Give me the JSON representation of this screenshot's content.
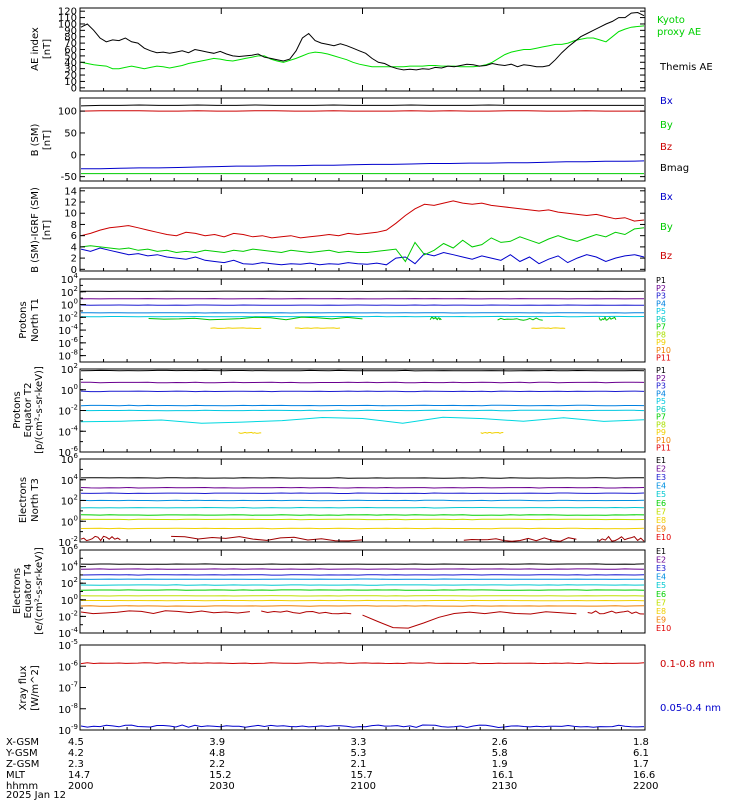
{
  "chart_data": [
    {
      "type": "line",
      "ylabel": "AE index [nT]",
      "ylim": [
        -5,
        125
      ],
      "yticks": [
        0,
        10,
        20,
        30,
        40,
        50,
        60,
        70,
        80,
        90,
        100,
        110,
        120
      ],
      "series": [
        {
          "name": "Kyoto proxy AE",
          "color": "#00e000",
          "values": [
            40,
            38,
            36,
            35,
            34,
            30,
            30,
            32,
            34,
            32,
            30,
            32,
            34,
            33,
            31,
            33,
            35,
            38,
            40,
            42,
            44,
            46,
            45,
            43,
            42,
            44,
            46,
            48,
            50,
            50,
            45,
            42,
            40,
            43,
            46,
            50,
            54,
            56,
            55,
            53,
            50,
            47,
            44,
            40,
            37,
            35,
            33,
            33,
            33,
            33,
            33,
            33,
            34,
            34,
            34,
            35,
            35,
            34,
            34,
            34,
            33,
            33,
            33,
            34,
            36,
            40,
            46,
            52,
            56,
            58,
            60,
            60,
            62,
            64,
            66,
            68,
            68,
            70,
            74,
            76,
            78,
            78,
            75,
            72,
            80,
            88,
            92,
            95,
            96,
            97
          ]
        },
        {
          "name": "Themis AE",
          "color": "#000000",
          "values": [
            95,
            100,
            90,
            78,
            72,
            75,
            74,
            78,
            72,
            70,
            62,
            58,
            55,
            56,
            54,
            56,
            58,
            55,
            60,
            58,
            56,
            54,
            57,
            53,
            50,
            49,
            50,
            51,
            53,
            48,
            46,
            44,
            42,
            45,
            58,
            78,
            85,
            74,
            70,
            68,
            66,
            69,
            66,
            62,
            58,
            54,
            46,
            40,
            38,
            33,
            30,
            28,
            29,
            28,
            30,
            29,
            32,
            31,
            34,
            33,
            35,
            37,
            36,
            34,
            35,
            38,
            36,
            35,
            37,
            33,
            36,
            35,
            33,
            33,
            35,
            44,
            55,
            64,
            72,
            80,
            85,
            90,
            95,
            100,
            104,
            110,
            110,
            117,
            118,
            113
          ]
        }
      ]
    },
    {
      "type": "line",
      "ylabel": "B (SM) [nT]",
      "ylim": [
        -60,
        130
      ],
      "yticks": [
        -50,
        0,
        50,
        100
      ],
      "series": [
        {
          "name": "Bx",
          "color": "#0000cc",
          "values": [
            -32,
            -32,
            -31,
            -30,
            -30,
            -29,
            -28,
            -27,
            -26,
            -26,
            -25,
            -25,
            -24,
            -24,
            -23,
            -22,
            -22,
            -21,
            -20,
            -20,
            -19,
            -19,
            -18,
            -18,
            -17,
            -16,
            -16,
            -15,
            -15,
            -14
          ]
        },
        {
          "name": "By",
          "color": "#00cc00",
          "values": [
            -43,
            -43,
            -43,
            -43,
            -43,
            -43,
            -43,
            -43,
            -43,
            -43,
            -43,
            -43,
            -43,
            -43,
            -43,
            -43,
            -43,
            -43,
            -43,
            -43,
            -43,
            -43,
            -43,
            -43,
            -43,
            -43,
            -43,
            -43,
            -43,
            -43
          ]
        },
        {
          "name": "Bz",
          "color": "#cc0000",
          "values": [
            100,
            101,
            101,
            101,
            100,
            100,
            101,
            100,
            100,
            101,
            101,
            100,
            100,
            101,
            100,
            100,
            100,
            101,
            100,
            101,
            100,
            100,
            101,
            101,
            100,
            100,
            101,
            100,
            100,
            100
          ]
        },
        {
          "name": "Bmag",
          "color": "#000000",
          "values": [
            112,
            113,
            113,
            114,
            113,
            113,
            114,
            113,
            113,
            114,
            113,
            113,
            113,
            114,
            113,
            113,
            113,
            114,
            113,
            113,
            113,
            114,
            113,
            113,
            113,
            113,
            113,
            113,
            113,
            113
          ]
        }
      ]
    },
    {
      "type": "line",
      "ylabel": "B (SM)-IGRF (SM) [nT]",
      "ylim": [
        -0.3,
        14.5
      ],
      "yticks": [
        0,
        2,
        4,
        6,
        8,
        10,
        12,
        14
      ],
      "series": [
        {
          "name": "Bx",
          "color": "#0000cc",
          "values": [
            3.6,
            3.2,
            3.8,
            3.4,
            3.0,
            2.6,
            2.8,
            2.4,
            2.6,
            2.2,
            2.0,
            1.8,
            2.2,
            1.6,
            1.4,
            1.2,
            1.6,
            1.0,
            0.9,
            1.2,
            1.0,
            0.8,
            1.0,
            0.9,
            1.1,
            0.8,
            1.0,
            0.9,
            1.2,
            1.0,
            0.9,
            1.1,
            0.8,
            2.0,
            2.2,
            1.0,
            2.8,
            2.4,
            3.0,
            2.6,
            2.2,
            1.8,
            2.4,
            2.0,
            1.6,
            2.6,
            1.4,
            2.2,
            1.0,
            1.8,
            2.4,
            1.2,
            2.0,
            2.6,
            2.2,
            1.4,
            2.0,
            2.4,
            2.6,
            2.2
          ]
        },
        {
          "name": "By",
          "color": "#00cc00",
          "values": [
            4.0,
            4.2,
            4.0,
            3.8,
            3.6,
            3.8,
            3.4,
            3.6,
            3.2,
            3.4,
            3.0,
            3.2,
            3.0,
            3.4,
            3.2,
            3.0,
            3.4,
            3.2,
            3.6,
            3.4,
            3.2,
            3.0,
            3.4,
            3.2,
            3.0,
            3.2,
            3.4,
            3.0,
            3.2,
            3.0,
            3.0,
            3.2,
            3.4,
            3.6,
            1.4,
            4.8,
            2.6,
            3.4,
            4.6,
            3.8,
            5.2,
            4.0,
            4.4,
            5.6,
            4.8,
            5.0,
            5.8,
            5.2,
            4.6,
            5.4,
            6.0,
            5.4,
            5.0,
            5.6,
            6.2,
            5.8,
            6.6,
            6.2,
            7.2,
            7.4
          ]
        },
        {
          "name": "Bz",
          "color": "#cc0000",
          "values": [
            6.0,
            6.4,
            7.0,
            7.4,
            7.6,
            7.8,
            7.4,
            7.0,
            6.6,
            6.2,
            6.0,
            6.6,
            6.4,
            6.0,
            6.2,
            5.8,
            6.4,
            6.2,
            5.8,
            6.0,
            5.6,
            5.8,
            6.0,
            5.6,
            5.8,
            6.0,
            6.2,
            6.0,
            6.4,
            6.2,
            6.4,
            6.6,
            7.0,
            8.2,
            9.6,
            10.8,
            11.6,
            11.4,
            11.8,
            12.2,
            11.8,
            11.6,
            11.8,
            11.4,
            11.2,
            11.0,
            10.8,
            10.6,
            10.4,
            10.6,
            10.2,
            10.0,
            9.8,
            9.6,
            9.8,
            9.4,
            9.0,
            9.2,
            8.6,
            8.8
          ]
        }
      ]
    },
    {
      "type": "line",
      "ylabel": "Protons North T1",
      "scale": "log",
      "ylim": [
        1e-09,
        10000.0
      ],
      "ytick_labels": [
        "10^-8",
        "10^-6",
        "10^-4",
        "10^-2",
        "10^0",
        "10^2",
        "10^4"
      ],
      "series_labels": [
        "P1",
        "P2",
        "P3",
        "P4",
        "P5",
        "P6",
        "P7",
        "P8",
        "P9",
        "P10",
        "P11"
      ],
      "series_colors": [
        "#000000",
        "#6a0090",
        "#1a1ad0",
        "#0080e0",
        "#00c8e0",
        "#00c8c0",
        "#00d000",
        "#a8e000",
        "#f0d000",
        "#f08000",
        "#e00000"
      ]
    },
    {
      "type": "line",
      "ylabel": "Protons Equator T2 [p/(cm²-s-sr-keV)]",
      "scale": "log",
      "ylim": [
        1e-06,
        100.0
      ],
      "ytick_labels": [
        "10^-6",
        "10^-4",
        "10^-2",
        "10^0",
        "10^2"
      ],
      "series_labels": [
        "P1",
        "P2",
        "P3",
        "P4",
        "P5",
        "P6",
        "P7",
        "P8",
        "P9",
        "P10",
        "P11"
      ],
      "series_colors": [
        "#000000",
        "#6a0090",
        "#1a1ad0",
        "#0080e0",
        "#00c8e0",
        "#00c8c0",
        "#00d000",
        "#a8e000",
        "#f0d000",
        "#f08000",
        "#e00000"
      ]
    },
    {
      "type": "line",
      "ylabel": "Electrons North T3",
      "scale": "log",
      "ylim": [
        0.01,
        1000000.0
      ],
      "ytick_labels": [
        "10^-2",
        "10^0",
        "10^2",
        "10^4",
        "10^6"
      ],
      "series_labels": [
        "E1",
        "E2",
        "E3",
        "E4",
        "E5",
        "E6",
        "E7",
        "E8",
        "E9",
        "E10"
      ],
      "series_colors": [
        "#000000",
        "#6a0090",
        "#1a1ad0",
        "#0090e0",
        "#00c8d0",
        "#00d000",
        "#c0e000",
        "#f0d000",
        "#f08000",
        "#e00000"
      ]
    },
    {
      "type": "line",
      "ylabel": "Electrons Equator T4 [e/(cm²-s-sr-keV)]",
      "scale": "log",
      "ylim": [
        0.0001,
        1000000.0
      ],
      "ytick_labels": [
        "10^-4",
        "10^-2",
        "10^0",
        "10^2",
        "10^4",
        "10^6"
      ],
      "series_labels": [
        "E1",
        "E2",
        "E3",
        "E4",
        "E5",
        "E6",
        "E7",
        "E8",
        "E9",
        "E10"
      ],
      "series_colors": [
        "#000000",
        "#6a0090",
        "#1a1ad0",
        "#0090e0",
        "#00c8d0",
        "#00d000",
        "#c0e000",
        "#f0d000",
        "#f08000",
        "#e00000"
      ]
    },
    {
      "type": "line",
      "ylabel": "Xray flux [W/m^2]",
      "scale": "log",
      "ylim": [
        1e-09,
        1e-05
      ],
      "ytick_labels": [
        "10^-9",
        "10^-8",
        "10^-7",
        "10^-6",
        "10^-5"
      ],
      "series": [
        {
          "name": "0.1-0.8 nm",
          "color": "#cc0000",
          "value": 1.4e-06
        },
        {
          "name": "0.05-0.4 nm",
          "color": "#0000cc",
          "value": 1.5e-09
        }
      ]
    }
  ],
  "x_axis": {
    "range_minutes": [
      0,
      120
    ],
    "ticks": [
      "2000",
      "2030",
      "2100",
      "2130",
      "2200"
    ],
    "rows": [
      {
        "label": "X-GSM",
        "values": [
          "4.5",
          "3.9",
          "3.3",
          "2.6",
          "1.8"
        ]
      },
      {
        "label": "Y-GSM",
        "values": [
          "4.2",
          "4.8",
          "5.3",
          "5.8",
          "6.1"
        ]
      },
      {
        "label": "Z-GSM",
        "values": [
          "2.3",
          "2.2",
          "2.1",
          "1.9",
          "1.7"
        ]
      },
      {
        "label": "MLT",
        "values": [
          "14.7",
          "15.2",
          "15.7",
          "16.1",
          "16.6"
        ]
      },
      {
        "label": "hhmm",
        "values": [
          "2000",
          "2030",
          "2100",
          "2130",
          "2200"
        ]
      }
    ],
    "date": "2025 Jan 12"
  },
  "legend_text": {
    "kyoto_1": "Kyoto",
    "kyoto_2": "proxy AE",
    "themis": "Themis AE",
    "ae_l1": "AE index",
    "ae_l2": "[nT]",
    "b_l1": "B (SM)",
    "b_l2": "[nT]",
    "bi_l1": "B (SM)-IGRF (SM)",
    "bi_l2": "[nT]",
    "pn_l1": "Protons",
    "pn_l2": "North T1",
    "pe_l1": "Protons",
    "pe_l2": "Equator T2",
    "pe_l3": "[p/(cm²-s-sr-keV)]",
    "en_l1": "Electrons",
    "en_l2": "North T3",
    "ee_l1": "Electrons",
    "ee_l2": "Equator T4",
    "ee_l3": "[e/(cm²-s-sr-keV)]",
    "x_l1": "Xray flux",
    "x_l2": "[W/m^2]"
  }
}
